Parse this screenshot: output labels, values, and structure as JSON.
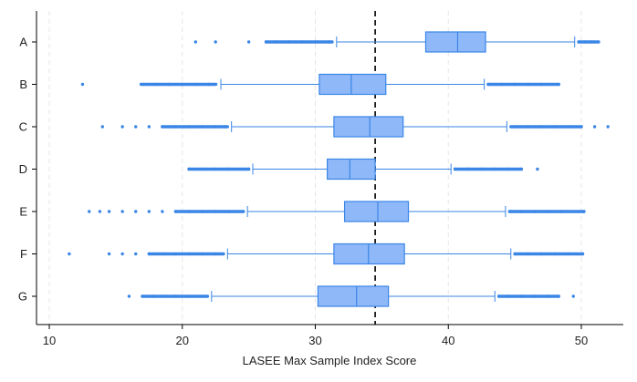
{
  "chart_data": {
    "type": "boxplot",
    "orientation": "horizontal",
    "title": "",
    "xlabel": "LASEE Max Sample Index Score",
    "ylabel": "",
    "xlim": [
      9,
      53
    ],
    "xticks": [
      10,
      20,
      30,
      40,
      50
    ],
    "reference_line": {
      "x": 34.5,
      "style": "dashed",
      "color": "#000000"
    },
    "grid": "vertical dashed, light",
    "colors": {
      "box_fill": "#8fb8f8",
      "box_edge": "#3a86e6",
      "whisker": "#3a86e6",
      "outlier": "#3a86e6",
      "median": "#3a86e6"
    },
    "categories": [
      "A",
      "B",
      "C",
      "D",
      "E",
      "F",
      "G"
    ],
    "boxes": [
      {
        "label": "A",
        "whisker_low": 31.6,
        "q1": 38.3,
        "median": 40.7,
        "q3": 42.8,
        "whisker_high": 49.5,
        "outliers_low": [
          21.0,
          22.5,
          25.0,
          26.3,
          27.0,
          28.0,
          29.0,
          30.0,
          31.0
        ],
        "outliers_high": [
          49.8,
          50.3,
          50.8,
          51.3
        ]
      },
      {
        "label": "B",
        "whisker_low": 22.9,
        "q1": 30.3,
        "median": 32.7,
        "q3": 35.3,
        "whisker_high": 42.7,
        "outliers_low": [
          12.5,
          18.0,
          19.0,
          20.0,
          21.0,
          22.0
        ],
        "outliers_high": [
          43.0,
          44.0,
          45.0,
          46.0,
          47.0,
          48.3
        ]
      },
      {
        "label": "C",
        "whisker_low": 23.7,
        "q1": 31.4,
        "median": 34.1,
        "q3": 36.6,
        "whisker_high": 44.4,
        "outliers_low": [
          14.0,
          15.5,
          16.5,
          17.5,
          18.5,
          19.5,
          20.5,
          21.5,
          22.5,
          23.2
        ],
        "outliers_high": [
          45.0,
          46.0,
          47.0,
          48.0,
          49.0,
          50.0,
          51.0,
          52.0
        ]
      },
      {
        "label": "D",
        "whisker_low": 25.3,
        "q1": 30.9,
        "median": 32.6,
        "q3": 34.5,
        "whisker_high": 40.2,
        "outliers_low": [
          20.5,
          21.5,
          22.5,
          23.5,
          24.5,
          25.0
        ],
        "outliers_high": [
          40.5,
          41.5,
          42.5,
          43.5,
          44.5,
          45.5,
          46.7
        ]
      },
      {
        "label": "E",
        "whisker_low": 24.9,
        "q1": 32.2,
        "median": 34.7,
        "q3": 37.0,
        "whisker_high": 44.3,
        "outliers_low": [
          13.0,
          13.8,
          14.5,
          15.5,
          16.5,
          17.5,
          18.5,
          19.5,
          20.5,
          21.5,
          22.5,
          23.5,
          24.5
        ],
        "outliers_high": [
          44.7,
          45.5,
          46.5,
          47.5,
          48.5,
          50.2
        ]
      },
      {
        "label": "F",
        "whisker_low": 23.4,
        "q1": 31.4,
        "median": 34.0,
        "q3": 36.7,
        "whisker_high": 44.7,
        "outliers_low": [
          11.5,
          14.5,
          15.5,
          16.5,
          17.5,
          18.6,
          19.5,
          20.5,
          21.5,
          22.5
        ],
        "outliers_high": [
          45.0,
          46.0,
          47.0,
          48.0,
          49.0,
          50.1
        ]
      },
      {
        "label": "G",
        "whisker_low": 22.2,
        "q1": 30.2,
        "median": 33.1,
        "q3": 35.5,
        "whisker_high": 43.5,
        "outliers_low": [
          16.0,
          17.0,
          17.8,
          18.5,
          19.5,
          20.5,
          21.5
        ],
        "outliers_high": [
          43.8,
          44.5,
          45.5,
          46.5,
          47.5,
          48.3,
          49.4
        ]
      }
    ]
  }
}
